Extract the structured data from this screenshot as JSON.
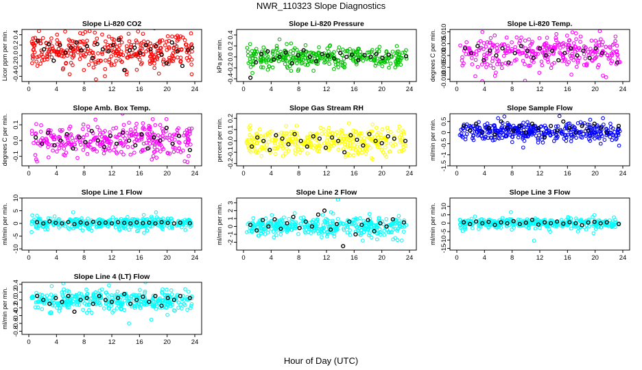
{
  "title": "NWR_110323  Slope Diagnostics",
  "xlabel": "Hour of Day (UTC)",
  "chart_data": [
    {
      "id": "co2",
      "type": "scatter",
      "title": "Slope Li-820 CO2",
      "ylabel": "Licor ppm per min.",
      "xlim": [
        0,
        24
      ],
      "xticks": [
        "0",
        "4",
        "8",
        "12",
        "16",
        "20",
        "24"
      ],
      "ylim": [
        -0.5,
        0.5
      ],
      "yticks": [
        -0.4,
        -0.2,
        0.0,
        0.2,
        0.4
      ],
      "yticklabels": [
        "-0.4",
        "-0.2",
        "0.0",
        "0.2",
        "0.4"
      ],
      "color": "#ff0000",
      "spread": 0.16,
      "center": 0.08,
      "cloud_n": 360,
      "highlight_y": [
        0.28,
        0.12,
        0.22,
        -0.1,
        0.2,
        0.05,
        0.15,
        0.25,
        0.1,
        0.18,
        -0.05,
        0.22,
        0.12,
        0.08,
        0.2,
        0.3,
        -0.28,
        0.1,
        0.15,
        0.05,
        0.2,
        0.12,
        0.18,
        0.02,
        -0.15,
        0.25,
        0.08,
        -0.2,
        0.1,
        0.15
      ],
      "highlight_x": [
        1.3,
        2.2,
        2.9,
        3.6,
        4.5,
        5.3,
        6.1,
        6.9,
        7.6,
        8.4,
        9.2,
        9.9,
        10.7,
        11.5,
        12.2,
        13.0,
        13.8,
        14.6,
        15.3,
        16.1,
        16.9,
        17.6,
        18.4,
        19.2,
        19.9,
        20.7,
        21.5,
        22.2,
        23.0,
        23.6
      ]
    },
    {
      "id": "pressure",
      "type": "scatter",
      "title": "Slope Li-820 Pressure",
      "ylabel": "kPa per min.",
      "xlim": [
        0,
        24
      ],
      "xticks": [
        "0",
        "4",
        "8",
        "12",
        "16",
        "20",
        "24"
      ],
      "ylim": [
        -0.45,
        0.5
      ],
      "yticks": [
        -0.4,
        -0.2,
        0.0,
        0.2,
        0.4
      ],
      "yticklabels": [
        "-0.4",
        "-0.2",
        "0.0",
        "0.2",
        "0.4"
      ],
      "color": "#00c000",
      "spread": 0.1,
      "center": 0.0,
      "cloud_n": 340,
      "highlight_y": [
        -0.38,
        -0.1,
        0.05,
        0.1,
        -0.05,
        0.0,
        0.08,
        -0.12,
        0.03,
        0.12,
        0.0,
        -0.08,
        0.05,
        0.02,
        -0.03,
        0.07,
        0.0,
        0.04,
        -0.06,
        0.03,
        0.0,
        0.05,
        -0.02,
        0.04,
        0.01
      ],
      "highlight_x": [
        1.0,
        1.8,
        2.6,
        3.5,
        4.4,
        5.2,
        6.1,
        7.0,
        7.9,
        8.7,
        9.6,
        10.5,
        11.4,
        12.2,
        13.1,
        14.0,
        14.9,
        15.7,
        16.6,
        17.5,
        18.4,
        19.2,
        20.1,
        21.0,
        23.5
      ]
    },
    {
      "id": "temp",
      "type": "scatter",
      "title": "Slope Li-820 Temp.",
      "ylabel": "degrees C per min.",
      "xlim": [
        0,
        24
      ],
      "xticks": [
        "0",
        "4",
        "8",
        "12",
        "16",
        "20",
        "24"
      ],
      "ylim": [
        -0.011,
        0.011
      ],
      "yticks": [
        -0.01,
        -0.005,
        0.0,
        0.005,
        0.01
      ],
      "yticklabels": [
        "-0.010",
        "-0.005",
        "0.000",
        "0.005",
        "0.010"
      ],
      "color": "#ff00ff",
      "spread": 0.0035,
      "center": 0.0015,
      "cloud_n": 320,
      "highlight_y": [
        0.003,
        0.001,
        0.004,
        -0.002,
        0.002,
        0.0,
        0.003,
        -0.003,
        0.001,
        0.004,
        0.002,
        -0.001,
        0.003,
        0.0,
        0.002,
        -0.002,
        0.001,
        0.003,
        0.0,
        0.002,
        -0.001,
        0.003,
        0.001,
        -0.003
      ],
      "highlight_x": [
        1.2,
        2.1,
        3.0,
        3.9,
        4.8,
        5.7,
        6.6,
        7.5,
        8.4,
        9.3,
        10.2,
        11.1,
        12.0,
        12.9,
        13.8,
        14.7,
        15.6,
        16.5,
        17.4,
        18.3,
        19.2,
        20.1,
        21.0,
        23.2
      ]
    },
    {
      "id": "ambbox",
      "type": "scatter",
      "title": "Slope Amb. Box Temp.",
      "ylabel": "degrees C per min.",
      "xlim": [
        0,
        24
      ],
      "xticks": [
        "0",
        "4",
        "8",
        "12",
        "16",
        "20",
        "24"
      ],
      "ylim": [
        -0.16,
        0.17
      ],
      "yticks": [
        -0.1,
        0.0,
        0.1
      ],
      "yticklabels": [
        "-0.1",
        "0.0",
        "0.1"
      ],
      "color": "#ff00ff",
      "spread": 0.05,
      "center": 0.0,
      "cloud_n": 330,
      "highlight_y": [
        0.02,
        -0.02,
        0.05,
        -0.03,
        0.0,
        0.04,
        -0.05,
        0.02,
        -0.01,
        0.06,
        0.0,
        -0.04,
        0.03,
        -0.02,
        0.05,
        0.0,
        -0.03,
        0.04,
        -0.05,
        0.02,
        0.0,
        0.08,
        -0.02,
        0.03,
        -0.06
      ],
      "highlight_x": [
        1.0,
        1.9,
        2.8,
        3.7,
        4.6,
        5.5,
        6.4,
        7.3,
        8.2,
        9.1,
        10.0,
        10.9,
        11.8,
        12.7,
        13.6,
        14.5,
        15.4,
        16.3,
        17.2,
        18.1,
        19.0,
        19.9,
        20.8,
        21.7,
        23.3
      ]
    },
    {
      "id": "rh",
      "type": "scatter",
      "title": "Slope Gas Stream RH",
      "ylabel": "percent per min.",
      "xlim": [
        0,
        24
      ],
      "xticks": [
        "0",
        "4",
        "8",
        "12",
        "16",
        "20",
        "24"
      ],
      "ylim": [
        -0.22,
        0.24
      ],
      "yticks": [
        -0.2,
        -0.1,
        0.0,
        0.1,
        0.2
      ],
      "yticklabels": [
        "-0.2",
        "-0.1",
        "0.0",
        "0.1",
        "0.2"
      ],
      "color": "#ffff00",
      "spread": 0.06,
      "center": 0.0,
      "cloud_n": 340,
      "highlight_y": [
        -0.05,
        0.03,
        0.0,
        -0.08,
        0.05,
        0.02,
        -0.03,
        0.06,
        0.0,
        -0.05,
        0.04,
        0.02,
        -0.06,
        0.03,
        0.0,
        -0.1,
        0.05,
        0.01,
        -0.04,
        0.06,
        0.0,
        -0.02,
        0.04,
        0.02,
        0.0
      ],
      "highlight_x": [
        1.2,
        2.0,
        2.9,
        3.8,
        4.7,
        5.6,
        6.5,
        7.4,
        8.3,
        9.2,
        10.1,
        11.0,
        11.9,
        12.8,
        13.7,
        14.6,
        15.5,
        16.4,
        17.3,
        18.2,
        19.1,
        20.0,
        20.9,
        21.8,
        23.4
      ]
    },
    {
      "id": "sampleflow",
      "type": "scatter",
      "title": "Slope Sample Flow",
      "ylabel": "ml/min per min.",
      "xlim": [
        0,
        24
      ],
      "xticks": [
        "0",
        "4",
        "8",
        "12",
        "16",
        "20",
        "24"
      ],
      "ylim": [
        -1.5,
        0.85
      ],
      "yticks": [
        -1.5,
        -1.0,
        -0.5,
        0.0,
        0.5
      ],
      "yticklabels": [
        "-1.5",
        "-1",
        "-0.5",
        "0",
        "0.5"
      ],
      "color": "#0000ff",
      "spread": 0.2,
      "center": 0.05,
      "cloud_n": 380,
      "highlight_y": [
        0.3,
        0.1,
        0.4,
        0.0,
        0.2,
        -0.1,
        0.5,
        0.2,
        0.1,
        0.3,
        0.0,
        0.4,
        0.2,
        -0.2,
        0.3,
        0.1,
        0.5,
        0.2,
        0.0,
        0.3,
        0.1,
        0.4,
        0.2,
        0.0,
        0.3
      ],
      "highlight_x": [
        1.0,
        1.9,
        2.8,
        3.7,
        4.6,
        5.5,
        6.4,
        7.3,
        8.2,
        9.1,
        10.0,
        10.9,
        11.8,
        12.7,
        13.6,
        14.5,
        15.4,
        16.3,
        17.2,
        18.1,
        19.0,
        19.9,
        20.8,
        21.7,
        23.4
      ]
    },
    {
      "id": "line1",
      "type": "scatter",
      "title": "Slope Line 1 Flow",
      "ylabel": "ml/min per min.",
      "xlim": [
        0,
        24
      ],
      "xticks": [
        "0",
        "4",
        "8",
        "12",
        "16",
        "20",
        "24"
      ],
      "ylim": [
        -10.5,
        10
      ],
      "yticks": [
        -10,
        -5,
        0,
        5,
        10
      ],
      "yticklabels": [
        "-10",
        "-5",
        "0",
        "5",
        "10"
      ],
      "color": "#00ffff",
      "spread": 1.2,
      "center": 0.0,
      "cloud_n": 360,
      "highlight_y": [
        0.5,
        0.0,
        0.8,
        0.2,
        0.0,
        0.5,
        -0.3,
        0.4,
        0.0,
        0.6,
        0.1,
        0.3,
        0.0,
        0.5,
        0.2,
        0.0,
        0.4,
        0.1,
        0.3,
        0.0,
        0.5,
        0.2,
        0.0,
        0.3,
        0.1
      ],
      "highlight_x": [
        1.2,
        2.1,
        3.0,
        3.9,
        4.8,
        5.7,
        6.6,
        7.5,
        8.4,
        9.3,
        10.2,
        11.1,
        12.0,
        12.9,
        13.8,
        14.7,
        15.6,
        16.5,
        17.4,
        18.3,
        19.2,
        20.1,
        21.0,
        21.9,
        23.3
      ]
    },
    {
      "id": "line2",
      "type": "scatter",
      "title": "Slope Line 2 Flow",
      "ylabel": "ml/min per min.",
      "xlim": [
        0,
        24
      ],
      "xticks": [
        "0",
        "4",
        "8",
        "12",
        "16",
        "20",
        "24"
      ],
      "ylim": [
        -3.0,
        3.6
      ],
      "yticks": [
        -2,
        -1,
        0,
        1,
        2,
        3
      ],
      "yticklabels": [
        "-2",
        "-1",
        "0",
        "1",
        "2",
        "3"
      ],
      "color": "#00ffff",
      "spread": 0.6,
      "center": 0.0,
      "cloud_n": 370,
      "highlight_y": [
        0.2,
        -0.5,
        0.8,
        0.0,
        0.9,
        -0.3,
        0.4,
        1.2,
        -0.2,
        0.6,
        0.0,
        1.5,
        2.0,
        -0.4,
        0.3,
        -2.5,
        0.6,
        -1.0,
        0.2,
        0.8,
        -0.6,
        0.4,
        0.0,
        0.9,
        0.5
      ],
      "highlight_x": [
        1.0,
        1.9,
        2.8,
        3.6,
        4.5,
        5.4,
        6.3,
        7.2,
        8.1,
        9.0,
        9.9,
        10.8,
        11.7,
        12.6,
        13.5,
        14.4,
        15.3,
        16.2,
        17.1,
        18.0,
        18.9,
        19.8,
        20.7,
        21.6,
        23.2
      ]
    },
    {
      "id": "line3",
      "type": "scatter",
      "title": "Slope Line 3 Flow",
      "ylabel": "ml/min per min.",
      "xlim": [
        0,
        24
      ],
      "xticks": [
        "0",
        "4",
        "8",
        "12",
        "16",
        "20",
        "24"
      ],
      "ylim": [
        -16,
        15
      ],
      "yticks": [
        -15,
        -10,
        -5,
        0,
        5,
        10
      ],
      "yticklabels": [
        "-15",
        "-10",
        "-5",
        "0",
        "5",
        "10"
      ],
      "color": "#00ffff",
      "spread": 1.6,
      "center": 0.0,
      "cloud_n": 340,
      "highlight_y": [
        0.5,
        -0.5,
        1.0,
        0.0,
        0.8,
        -1.0,
        0.5,
        0.0,
        1.2,
        -0.5,
        0.3,
        2.0,
        -0.8,
        0.5,
        0.0,
        1.0,
        -0.3,
        0.6,
        0.0,
        -1.2,
        0.4,
        0.8,
        0.0,
        0.5,
        -0.5
      ],
      "highlight_x": [
        1.0,
        1.9,
        2.8,
        3.7,
        4.6,
        5.5,
        6.4,
        7.3,
        8.2,
        9.1,
        10.0,
        10.9,
        11.8,
        12.7,
        13.6,
        14.5,
        15.4,
        16.3,
        17.2,
        18.1,
        19.0,
        19.9,
        20.8,
        21.7,
        23.4
      ]
    },
    {
      "id": "line4",
      "type": "scatter",
      "title": "Slope Line 4 (LT) Flow",
      "ylabel": "ml/min per min.",
      "xlim": [
        0,
        24
      ],
      "xticks": [
        "0",
        "4",
        "8",
        "12",
        "16",
        "20",
        "24"
      ],
      "ylim": [
        -0.88,
        0.45
      ],
      "yticks": [
        -0.8,
        -0.6,
        -0.4,
        -0.2,
        0.0,
        0.2,
        0.4
      ],
      "yticklabels": [
        "-0.8",
        "-0.6",
        "-0.4",
        "-0.2",
        "0.0",
        "0.2",
        "0.4"
      ],
      "color": "#00ffff",
      "spread": 0.13,
      "center": -0.02,
      "cloud_n": 360,
      "highlight_y": [
        0.1,
        0.0,
        -0.1,
        0.05,
        -0.05,
        0.1,
        -0.3,
        0.0,
        0.05,
        -0.1,
        0.1,
        0.0,
        -0.05,
        0.05,
        0.15,
        -0.1,
        0.0,
        0.08,
        -0.05,
        0.1,
        -0.15,
        0.05,
        0.0,
        0.1,
        0.05
      ],
      "highlight_x": [
        1.2,
        2.1,
        3.0,
        3.9,
        4.8,
        5.7,
        6.6,
        7.5,
        8.4,
        9.3,
        10.2,
        11.1,
        12.0,
        12.9,
        13.8,
        14.7,
        15.6,
        16.5,
        17.4,
        18.3,
        19.2,
        20.1,
        21.0,
        21.9,
        23.3
      ]
    }
  ]
}
